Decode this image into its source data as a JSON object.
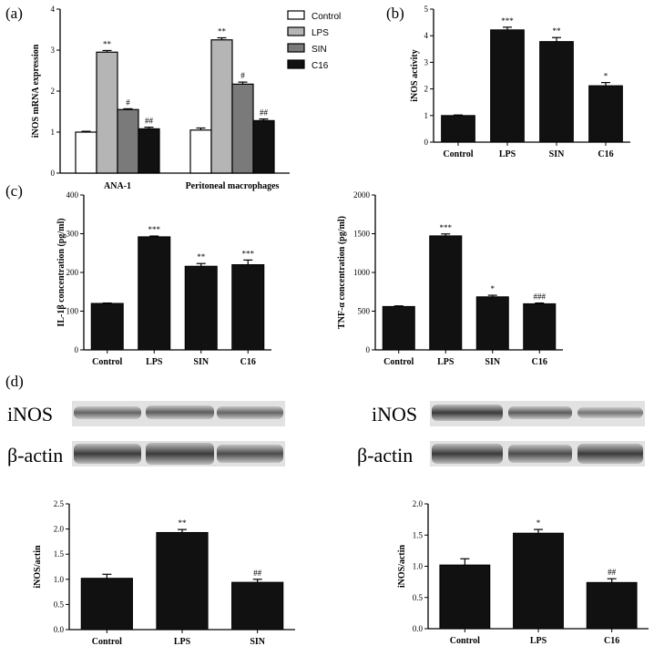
{
  "panels": {
    "a": "(a)",
    "b": "(b)",
    "c": "(c)",
    "d": "(d)"
  },
  "blots": {
    "left": {
      "row1": "iNOS",
      "row2": "β-actin"
    },
    "right": {
      "row1": "iNOS",
      "row2": "β-actin"
    }
  },
  "colors": {
    "Control": "#ffffff",
    "LPS": "#b5b5b5",
    "SIN": "#7a7a7a",
    "C16": "#111111",
    "bar": "#111111"
  },
  "chart_data": [
    {
      "id": "a",
      "type": "bar",
      "ylabel": "iNOS mRNA expression",
      "ylim": [
        0,
        4
      ],
      "yticks": [
        0,
        1,
        2,
        3,
        4
      ],
      "categories": [
        "ANA-1",
        "Peritoneal macrophages"
      ],
      "series": [
        {
          "name": "Control",
          "values": [
            1.0,
            1.05
          ],
          "errors": [
            0.02,
            0.05
          ],
          "labels": [
            "",
            ""
          ]
        },
        {
          "name": "LPS",
          "values": [
            2.95,
            3.25
          ],
          "errors": [
            0.04,
            0.05
          ],
          "labels": [
            "**",
            "**"
          ]
        },
        {
          "name": "SIN",
          "values": [
            1.55,
            2.17
          ],
          "errors": [
            0.02,
            0.05
          ],
          "labels": [
            "#",
            "#"
          ]
        },
        {
          "name": "C16",
          "values": [
            1.08,
            1.28
          ],
          "errors": [
            0.04,
            0.04
          ],
          "labels": [
            "##",
            "##"
          ]
        }
      ],
      "legend_position": "top-right"
    },
    {
      "id": "b",
      "type": "bar",
      "ylabel": "iNOS activity",
      "ylim": [
        0,
        5
      ],
      "yticks": [
        0,
        1,
        2,
        3,
        4,
        5
      ],
      "categories": [
        "Control",
        "LPS",
        "SIN",
        "C16"
      ],
      "values": [
        1.0,
        4.22,
        3.78,
        2.12
      ],
      "errors": [
        0.02,
        0.1,
        0.15,
        0.12
      ],
      "labels": [
        "",
        "***",
        "**",
        "*"
      ]
    },
    {
      "id": "c1",
      "type": "bar",
      "ylabel": "IL-1β concentration (pg/ml)",
      "ylim": [
        0,
        400
      ],
      "yticks": [
        0,
        100,
        200,
        300,
        400
      ],
      "categories": [
        "Control",
        "LPS",
        "SIN",
        "C16"
      ],
      "values": [
        120,
        292,
        216,
        220
      ],
      "errors": [
        1,
        2,
        7,
        12
      ],
      "labels": [
        "",
        "***",
        "**",
        "***"
      ]
    },
    {
      "id": "c2",
      "type": "bar",
      "ylabel": "TNF-α concentration (pg/ml)",
      "ylim": [
        0,
        2000
      ],
      "yticks": [
        0,
        500,
        1000,
        1500,
        2000
      ],
      "categories": [
        "Control",
        "LPS",
        "SIN",
        "C16"
      ],
      "values": [
        560,
        1472,
        685,
        595
      ],
      "errors": [
        8,
        25,
        20,
        10
      ],
      "labels": [
        "",
        "***",
        "*",
        "###"
      ]
    },
    {
      "id": "d1",
      "type": "bar",
      "ylabel": "iNOS/actin",
      "ylim": [
        0,
        2.5
      ],
      "yticks": [
        "0.0",
        "0.5",
        "1.0",
        "1.5",
        "2.0",
        "2.5"
      ],
      "categories": [
        "Control",
        "LPS",
        "SIN"
      ],
      "values": [
        1.02,
        1.93,
        0.94
      ],
      "errors": [
        0.08,
        0.06,
        0.06
      ],
      "labels": [
        "",
        "**",
        "##"
      ]
    },
    {
      "id": "d2",
      "type": "bar",
      "ylabel": "iNOS/actin",
      "ylim": [
        0,
        2.0
      ],
      "yticks": [
        "0.0",
        "0.5",
        "1.0",
        "1.5",
        "2.0"
      ],
      "categories": [
        "Control",
        "LPS",
        "C16"
      ],
      "values": [
        1.02,
        1.53,
        0.74
      ],
      "errors": [
        0.1,
        0.06,
        0.06
      ],
      "labels": [
        "",
        "*",
        "##"
      ]
    }
  ]
}
